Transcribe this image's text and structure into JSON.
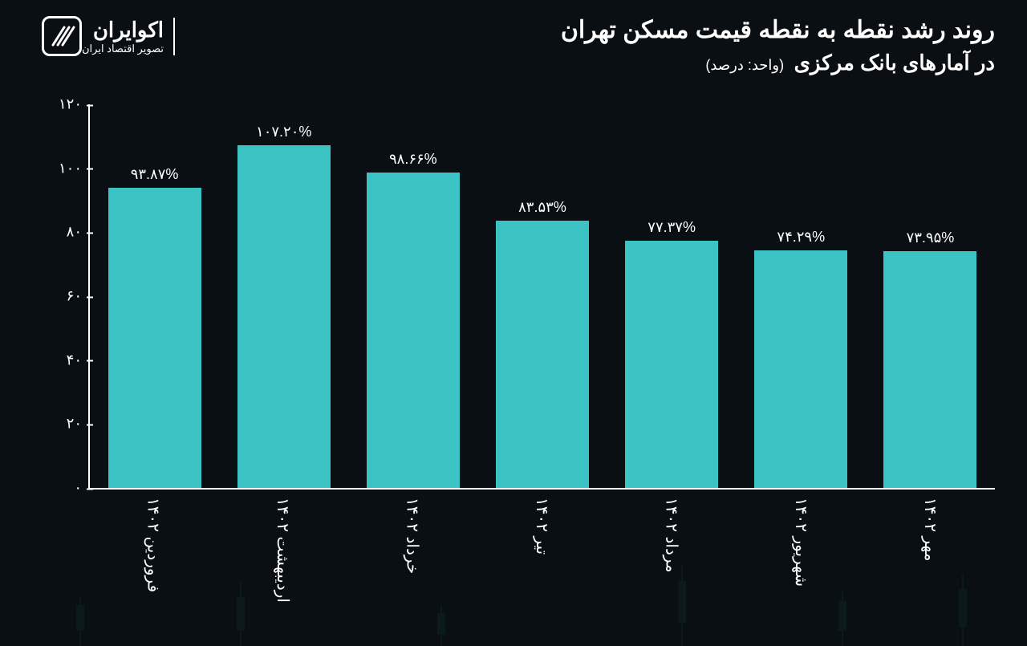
{
  "brand": {
    "name": "اکوایران",
    "subtitle": "تصویر اقتصاد ایران"
  },
  "title": {
    "line1": "روند رشد نقطه به نقطه قیمت مسکن تهران",
    "line2": "در آمارهای بانک مرکزی",
    "unit": "(واحد: درصد)"
  },
  "chart": {
    "type": "bar",
    "bar_color": "#3cc4c4",
    "background_color": "#0a0f14",
    "axis_color": "#ffffff",
    "text_color": "#ffffff",
    "title_fontsize": 30,
    "label_fontsize": 18,
    "value_fontsize": 18,
    "xlabel_fontsize": 20,
    "bar_width_ratio": 0.72,
    "ylim": [
      0,
      120
    ],
    "ytick_step": 20,
    "yticks": [
      {
        "value": 0,
        "label": "۰"
      },
      {
        "value": 20,
        "label": "۲۰"
      },
      {
        "value": 40,
        "label": "۴۰"
      },
      {
        "value": 60,
        "label": "۶۰"
      },
      {
        "value": 80,
        "label": "۸۰"
      },
      {
        "value": 100,
        "label": "۱۰۰"
      },
      {
        "value": 120,
        "label": "۱۲۰"
      }
    ],
    "series": [
      {
        "category": "فروردین ۱۴۰۲",
        "value": 93.87,
        "value_label": "۹۳.۸۷%"
      },
      {
        "category": "اردیبهشت ۱۴۰۲",
        "value": 107.2,
        "value_label": "۱۰۷.۲۰%"
      },
      {
        "category": "خرداد ۱۴۰۲",
        "value": 98.66,
        "value_label": "۹۸.۶۶%"
      },
      {
        "category": "تیر ۱۴۰۲",
        "value": 83.53,
        "value_label": "۸۳.۵۳%"
      },
      {
        "category": "مرداد ۱۴۰۲",
        "value": 77.37,
        "value_label": "۷۷.۳۷%"
      },
      {
        "category": "شهریور ۱۴۰۲",
        "value": 74.29,
        "value_label": "۷۴.۲۹%"
      },
      {
        "category": "مهر ۱۴۰۲",
        "value": 73.95,
        "value_label": "۷۳.۹۵%"
      }
    ]
  }
}
